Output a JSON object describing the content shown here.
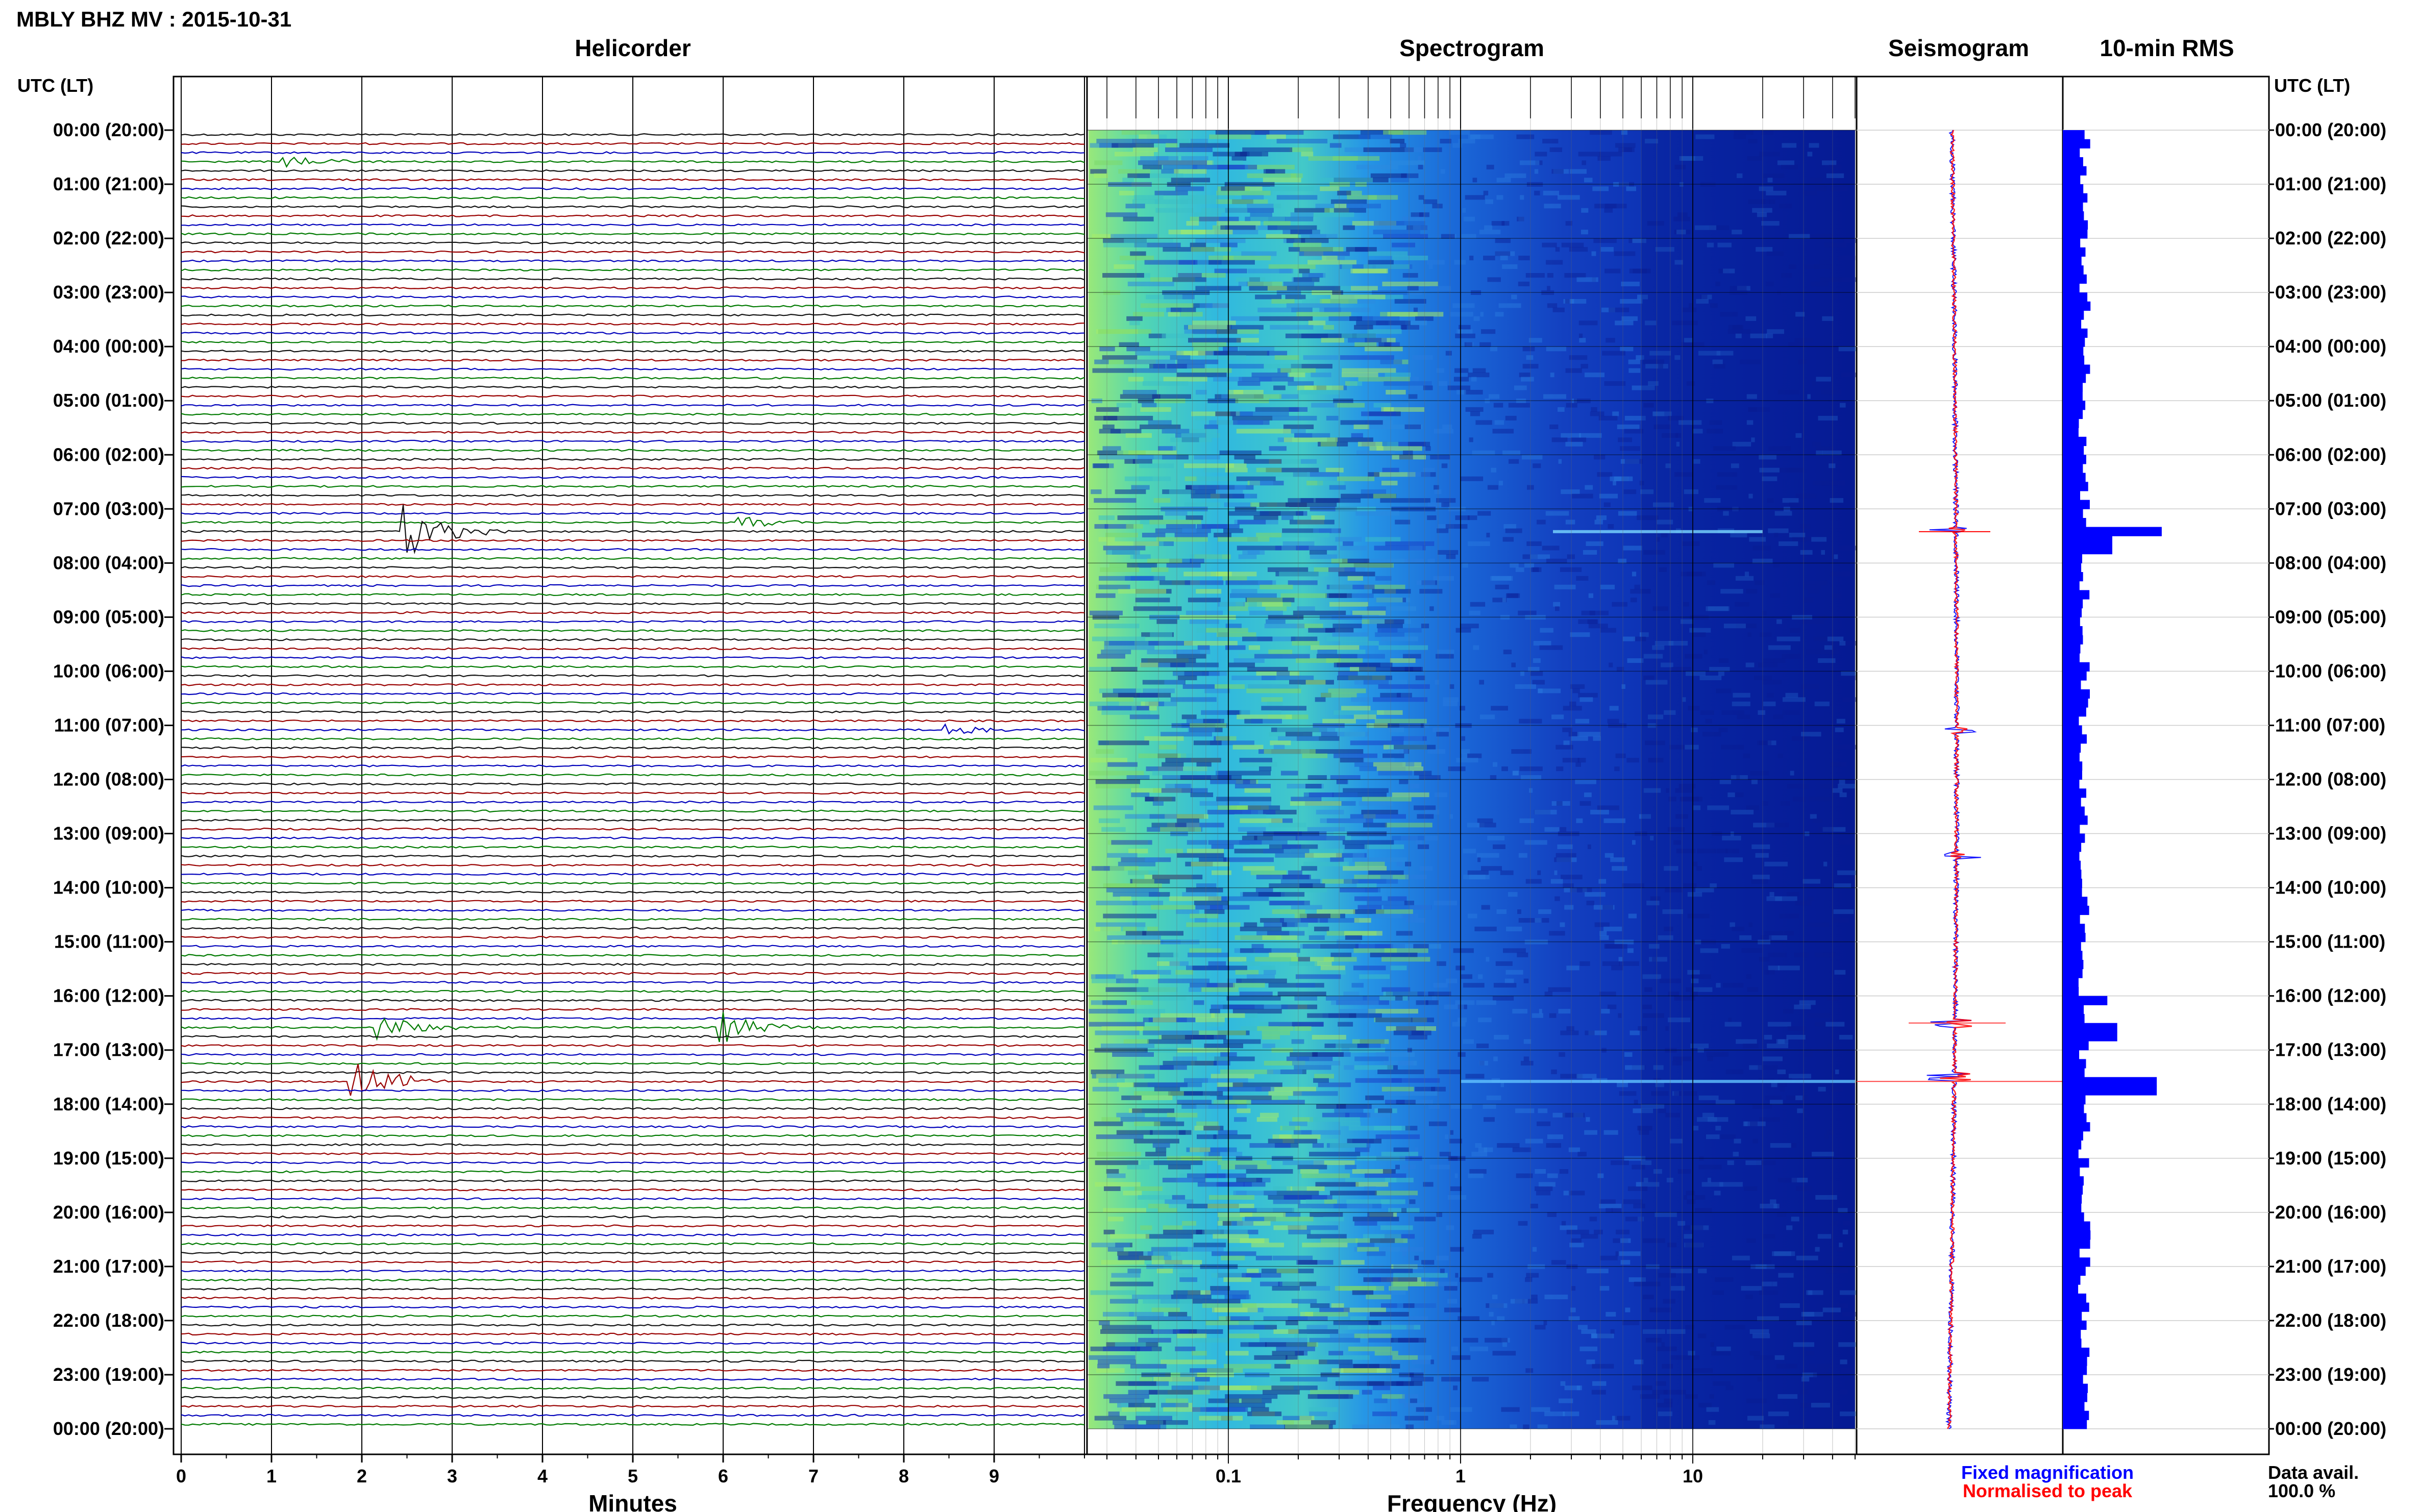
{
  "title": "MBLY BHZ MV : 2015-10-31",
  "panels": {
    "helicorder": "Helicorder",
    "spectrogram": "Spectrogram",
    "seismogram": "Seismogram",
    "rms": "10-min RMS"
  },
  "time_axis_label": "UTC (LT)",
  "time_labels": [
    "00:00 (20:00)",
    "01:00 (21:00)",
    "02:00 (22:00)",
    "03:00 (23:00)",
    "04:00 (00:00)",
    "05:00 (01:00)",
    "06:00 (02:00)",
    "07:00 (03:00)",
    "08:00 (04:00)",
    "09:00 (05:00)",
    "10:00 (06:00)",
    "11:00 (07:00)",
    "12:00 (08:00)",
    "13:00 (09:00)",
    "14:00 (10:00)",
    "15:00 (11:00)",
    "16:00 (12:00)",
    "17:00 (13:00)",
    "18:00 (14:00)",
    "19:00 (15:00)",
    "20:00 (16:00)",
    "21:00 (17:00)",
    "22:00 (18:00)",
    "23:00 (19:00)",
    "00:00 (20:00)"
  ],
  "minutes_axis": {
    "label": "Minutes",
    "ticks": [
      "0",
      "1",
      "2",
      "3",
      "4",
      "5",
      "6",
      "7",
      "8",
      "9"
    ]
  },
  "frequency_axis": {
    "label": "Frequency (Hz)",
    "ticks": [
      "0.1",
      "1",
      "10"
    ],
    "scale": "log",
    "range_hz": [
      0.025,
      50
    ]
  },
  "legend": {
    "fixed": "Fixed magnification",
    "normalised": "Normalised to peak",
    "fixed_color": "#0000ff",
    "normalised_color": "#ff0000"
  },
  "data_availability": {
    "label": "Data avail.",
    "value": "100.0 %"
  },
  "colors": {
    "trace_cycle": [
      "#000000",
      "#cc0000",
      "#0000cc",
      "#008800"
    ],
    "rms_bar": "#0000ff",
    "spectrogram_low": "#aaff44",
    "spectrogram_high": "#000088"
  },
  "chart_data": [
    {
      "type": "line",
      "title": "Helicorder",
      "xlabel": "Minutes",
      "xlim": [
        0,
        10
      ],
      "rows": 144,
      "row_minutes": 10,
      "events": [
        {
          "time_utc": "00:30",
          "minute": 1.1,
          "amplitude": "small"
        },
        {
          "time_utc": "07:20",
          "minute": 2.5,
          "amplitude": "large"
        },
        {
          "time_utc": "07:10",
          "minute": 6.2,
          "amplitude": "small"
        },
        {
          "time_utc": "11:00",
          "minute": 8.5,
          "amplitude": "small"
        },
        {
          "time_utc": "16:30",
          "minute": 2.2,
          "amplitude": "medium"
        },
        {
          "time_utc": "16:30",
          "minute": 6.0,
          "amplitude": "medium"
        },
        {
          "time_utc": "17:30",
          "minute": 1.9,
          "amplitude": "large"
        }
      ]
    },
    {
      "type": "heatmap",
      "title": "Spectrogram",
      "xlabel": "Frequency (Hz)",
      "x_scale": "log",
      "xlim": [
        0.025,
        50
      ],
      "ylim_hours": [
        0,
        24
      ]
    },
    {
      "type": "line",
      "title": "Seismogram",
      "series": [
        {
          "name": "Fixed magnification",
          "color": "#0000ff"
        },
        {
          "name": "Normalised to peak",
          "color": "#ff0000"
        }
      ],
      "spikes_hours": [
        7.4,
        11.1,
        13.4,
        16.5,
        17.5
      ]
    },
    {
      "type": "bar",
      "title": "10-min RMS",
      "bin_minutes": 10,
      "baseline_level": 0.28,
      "peaks": [
        {
          "hour": 7.42,
          "level": 1.0
        },
        {
          "hour": 7.58,
          "level": 0.5
        },
        {
          "hour": 16.0,
          "level": 0.45
        },
        {
          "hour": 16.58,
          "level": 0.55
        },
        {
          "hour": 17.58,
          "level": 0.95
        }
      ]
    }
  ]
}
